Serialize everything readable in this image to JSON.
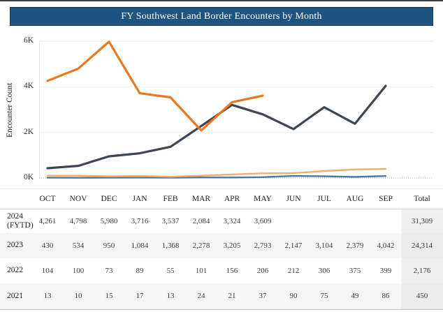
{
  "header": {
    "title": "FY Southwest Land Border Encounters by Month",
    "bar_color": "#1F5380"
  },
  "chart": {
    "ylabel": "Encounter Count",
    "yticks": [
      "0K",
      "2K",
      "4K",
      "6K"
    ]
  },
  "chart_data": {
    "type": "line",
    "title": "FY Southwest Land Border Encounters by Month",
    "xlabel": "",
    "ylabel": "Encounter Count",
    "ylim": [
      0,
      6000
    ],
    "grid": "horizontal gridlines at 2K/4K/6K, dotted zero line",
    "legend_position": "none",
    "categories": [
      "OCT",
      "NOV",
      "DEC",
      "JAN",
      "FEB",
      "MAR",
      "APR",
      "MAY",
      "JUN",
      "JUL",
      "AUG",
      "SEP"
    ],
    "series": [
      {
        "name": "2024 (FYTD)",
        "color": "#E8791E",
        "values": [
          4261,
          4798,
          5980,
          3716,
          3537,
          2084,
          3324,
          3609,
          null,
          null,
          null,
          null
        ]
      },
      {
        "name": "2023",
        "color": "#3D4653",
        "values": [
          430,
          534,
          950,
          1084,
          1368,
          2278,
          3205,
          2793,
          2147,
          3104,
          2379,
          4042
        ]
      },
      {
        "name": "2022",
        "color": "#F0B069",
        "values": [
          104,
          100,
          73,
          89,
          55,
          101,
          156,
          206,
          212,
          306,
          375,
          399
        ]
      },
      {
        "name": "2021",
        "color": "#4878A8",
        "values": [
          13,
          10,
          15,
          17,
          13,
          24,
          21,
          37,
          90,
          75,
          49,
          86
        ]
      }
    ]
  },
  "table": {
    "columns": [
      "OCT",
      "NOV",
      "DEC",
      "JAN",
      "FEB",
      "MAR",
      "APR",
      "MAY",
      "JUN",
      "JUL",
      "AUG",
      "SEP",
      "Total"
    ],
    "rows": [
      {
        "label_lines": [
          "2024",
          "(FYTD)"
        ],
        "cells": [
          "4,261",
          "4,798",
          "5,980",
          "3,716",
          "3,537",
          "2,084",
          "3,324",
          "3,609",
          "",
          "",
          "",
          ""
        ],
        "total": "31,309",
        "shaded": false
      },
      {
        "label_lines": [
          "2023"
        ],
        "cells": [
          "430",
          "534",
          "950",
          "1,084",
          "1,368",
          "2,278",
          "3,205",
          "2,793",
          "2,147",
          "3,104",
          "2,379",
          "4,042"
        ],
        "total": "24,314",
        "shaded": true
      },
      {
        "label_lines": [
          "2022"
        ],
        "cells": [
          "104",
          "100",
          "73",
          "89",
          "55",
          "101",
          "156",
          "206",
          "212",
          "306",
          "375",
          "399"
        ],
        "total": "2,176",
        "shaded": false
      },
      {
        "label_lines": [
          "2021"
        ],
        "cells": [
          "13",
          "10",
          "15",
          "17",
          "13",
          "24",
          "21",
          "37",
          "90",
          "75",
          "49",
          "86"
        ],
        "total": "450",
        "shaded": true
      }
    ]
  }
}
